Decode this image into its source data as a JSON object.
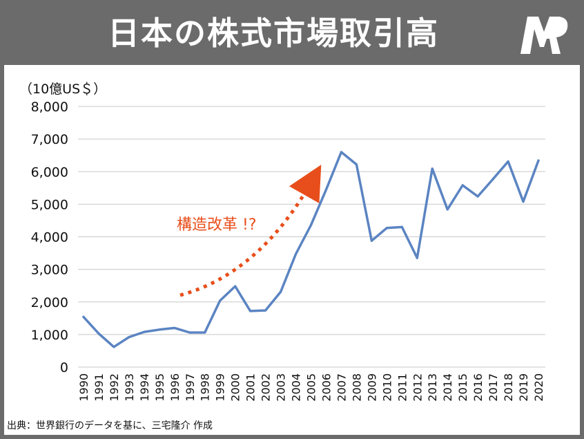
{
  "header": {
    "title": "日本の株式市場取引高",
    "logo_icon": "mj-logo-icon"
  },
  "footer": {
    "source": "出典：世界銀行のデータを基に、三宅隆介 作成"
  },
  "chart_data": {
    "type": "line",
    "title": "日本の株式市場取引高",
    "ylabel": "（10億US＄）",
    "xlabel": "",
    "ylim": [
      0,
      8000
    ],
    "yticks": [
      "0",
      "1,000",
      "2,000",
      "3,000",
      "4,000",
      "5,000",
      "6,000",
      "7,000",
      "8,000"
    ],
    "grid": true,
    "x": [
      "1990",
      "1991",
      "1992",
      "1993",
      "1994",
      "1995",
      "1996",
      "1997",
      "1998",
      "1999",
      "2000",
      "2001",
      "2002",
      "2003",
      "2004",
      "2005",
      "2006",
      "2007",
      "2008",
      "2009",
      "2010",
      "2011",
      "2012",
      "2013",
      "2014",
      "2015",
      "2016",
      "2017",
      "2018",
      "2019",
      "2020"
    ],
    "series": [
      {
        "name": "",
        "color": "#5b84c2",
        "values": [
          1540,
          1030,
          620,
          920,
          1080,
          1150,
          1200,
          1060,
          1060,
          2040,
          2480,
          1720,
          1740,
          2310,
          3470,
          4360,
          5450,
          6600,
          6220,
          3880,
          4270,
          4300,
          3350,
          6090,
          4840,
          5580,
          5240,
          5770,
          6310,
          5080,
          6340
        ]
      }
    ],
    "annotations": [
      {
        "text": "構造改革 !?",
        "color": "#e84e1b",
        "arrow": "dotted-curve",
        "from_x": "1997",
        "to_x": "2004"
      }
    ]
  }
}
